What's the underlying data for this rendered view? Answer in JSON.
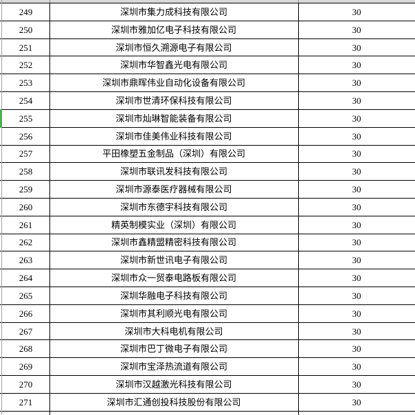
{
  "table": {
    "columns": [
      "row_number",
      "company_name",
      "value"
    ],
    "rows": [
      {
        "num": "249",
        "name": "深圳市集力成科技有限公司",
        "value": "30"
      },
      {
        "num": "250",
        "name": "深圳市雅加亿电子科技有限公司",
        "value": "30"
      },
      {
        "num": "251",
        "name": "深圳市恒久溯源电子有限公司",
        "value": "30"
      },
      {
        "num": "252",
        "name": "深圳市华智鑫光电有限公司",
        "value": "30"
      },
      {
        "num": "253",
        "name": "深圳市鼎晖伟业自动化设备有限公司",
        "value": "30"
      },
      {
        "num": "254",
        "name": "深圳市世清环保科技有限公司",
        "value": "30"
      },
      {
        "num": "255",
        "name": "深圳市灿琳智能装备有限公司",
        "value": "30"
      },
      {
        "num": "256",
        "name": "深圳市佳美伟业科技有限公司",
        "value": "30"
      },
      {
        "num": "257",
        "name": "平田橡塑五金制品（深圳）有限公司",
        "value": "30"
      },
      {
        "num": "258",
        "name": "深圳市联讯发科技有限公司",
        "value": "30"
      },
      {
        "num": "259",
        "name": "深圳市源泰医疗器械有限公司",
        "value": "30"
      },
      {
        "num": "260",
        "name": "深圳市东德宇科技有限公司",
        "value": "30"
      },
      {
        "num": "261",
        "name": "精英制模实业（深圳）有限公司",
        "value": "30"
      },
      {
        "num": "262",
        "name": "深圳市鑫精盟精密科技有限公司",
        "value": "30"
      },
      {
        "num": "263",
        "name": "深圳市新世讯电子有限公司",
        "value": "30"
      },
      {
        "num": "264",
        "name": "深圳市众一贸泰电路板有限公司",
        "value": "30"
      },
      {
        "num": "265",
        "name": "深圳华融电子科技有限公司",
        "value": "30"
      },
      {
        "num": "266",
        "name": "深圳市其利顺光电有限公司",
        "value": "30"
      },
      {
        "num": "267",
        "name": "深圳市大科电机有限公司",
        "value": "30"
      },
      {
        "num": "268",
        "name": "深圳市巴丁微电子有限公司",
        "value": "30"
      },
      {
        "num": "269",
        "name": "深圳市宝泽热流道有限公司",
        "value": "30"
      },
      {
        "num": "270",
        "name": "深圳市汉越激光科技有限公司",
        "value": "30"
      },
      {
        "num": "271",
        "name": "深圳市汇通创投科技股份有限公司",
        "value": "30"
      }
    ]
  },
  "highlight": {
    "row_num": "255",
    "color": "#4caf50"
  },
  "colors": {
    "gridline": "#000000",
    "left_edge_line": "#a0a0a0",
    "top_strip": "#d9d9d9",
    "background": "#ffffff"
  }
}
